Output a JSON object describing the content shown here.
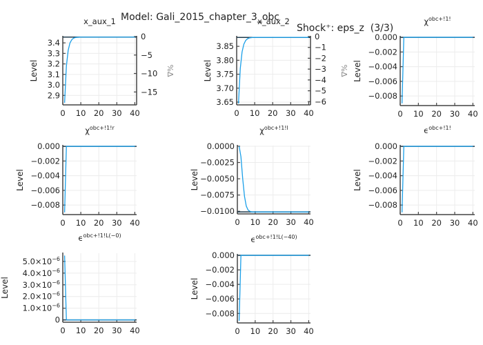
{
  "header": {
    "model_label": "Model: Gali_2015_chapter_3_obc",
    "shock_label": "Shock⁺: eps_z  (3/3)"
  },
  "colors": {
    "series": "#1a9fe8",
    "steady_state": "#1f3b4d",
    "axis": "#444444",
    "grid": "#ececec"
  },
  "chart_data": [
    {
      "type": "line",
      "title": "x_aux_1",
      "xlabel": "",
      "ylabel": "Level",
      "y2label": "%Δ",
      "xlim": [
        0,
        41
      ],
      "ylim": [
        2.81,
        3.46
      ],
      "xticks": [
        0,
        10,
        20,
        30,
        40
      ],
      "yticks": [
        2.9,
        3.0,
        3.1,
        3.2,
        3.3,
        3.4
      ],
      "ytick_labels": [
        "2.9",
        "3.0",
        "3.1",
        "3.2",
        "3.3",
        "3.4"
      ],
      "y2lim": [
        -18.5,
        0
      ],
      "y2ticks": [
        0,
        -5,
        -10,
        -15
      ],
      "y2tick_labels": [
        "0",
        "−5",
        "−10",
        "−15"
      ],
      "steady_state": 3.455,
      "x": [
        1,
        2,
        3,
        4,
        5,
        6,
        7,
        8,
        9,
        10,
        12,
        15,
        20,
        25,
        30,
        35,
        40
      ],
      "values": [
        2.83,
        3.18,
        3.33,
        3.4,
        3.43,
        3.445,
        3.451,
        3.453,
        3.454,
        3.455,
        3.455,
        3.455,
        3.455,
        3.455,
        3.455,
        3.455,
        3.455
      ]
    },
    {
      "type": "line",
      "title": "x_aux_2",
      "xlabel": "",
      "ylabel": "Level",
      "y2label": "%Δ",
      "xlim": [
        0,
        41
      ],
      "ylim": [
        3.64,
        3.885
      ],
      "xticks": [
        0,
        10,
        20,
        30,
        40
      ],
      "yticks": [
        3.65,
        3.7,
        3.75,
        3.8,
        3.85
      ],
      "ytick_labels": [
        "3.65",
        "3.70",
        "3.75",
        "3.80",
        "3.85"
      ],
      "y2lim": [
        -6.3,
        0
      ],
      "y2ticks": [
        0,
        -1,
        -2,
        -3,
        -4,
        -5,
        -6
      ],
      "y2tick_labels": [
        "0",
        "−1",
        "−2",
        "−3",
        "−4",
        "−5",
        "−6"
      ],
      "steady_state": 3.882,
      "x": [
        1,
        2,
        3,
        4,
        5,
        6,
        7,
        8,
        9,
        10,
        12,
        15,
        20,
        25,
        30,
        35,
        40
      ],
      "values": [
        3.645,
        3.77,
        3.83,
        3.858,
        3.871,
        3.877,
        3.88,
        3.881,
        3.882,
        3.882,
        3.882,
        3.882,
        3.882,
        3.882,
        3.882,
        3.882,
        3.882
      ]
    },
    {
      "type": "line",
      "title": "χᵒᵇᶜ⁺¹",
      "title_text": "χ",
      "title_sup": "obc+!1!",
      "ylabel": "Level",
      "xlim": [
        0,
        41
      ],
      "ylim": [
        -0.0093,
        0.0001
      ],
      "xticks": [
        0,
        10,
        20,
        30,
        40
      ],
      "yticks": [
        0,
        -0.002,
        -0.004,
        -0.006,
        -0.008
      ],
      "ytick_labels": [
        "0.000",
        "−0.002",
        "−0.004",
        "−0.006",
        "−0.008"
      ],
      "steady_state": 0,
      "x": [
        1,
        2,
        3,
        10,
        20,
        30,
        40
      ],
      "values": [
        -0.009,
        0,
        0,
        0,
        0,
        0,
        0
      ]
    },
    {
      "type": "line",
      "title_text": "χ",
      "title_sup": "obc+!1!r",
      "ylabel": "Level",
      "xlim": [
        0,
        41
      ],
      "ylim": [
        -0.0093,
        0.0001
      ],
      "xticks": [
        0,
        10,
        20,
        30,
        40
      ],
      "yticks": [
        0,
        -0.002,
        -0.004,
        -0.006,
        -0.008
      ],
      "ytick_labels": [
        "0.000",
        "−0.002",
        "−0.004",
        "−0.006",
        "−0.008"
      ],
      "steady_state": 0,
      "x": [
        1,
        2,
        3,
        10,
        20,
        30,
        40
      ],
      "values": [
        -0.009,
        0,
        0,
        0,
        0,
        0,
        0
      ]
    },
    {
      "type": "line",
      "title_text": "χ",
      "title_sup": "obc+!1!l",
      "ylabel": "Level",
      "xlim": [
        0,
        41
      ],
      "ylim": [
        -0.0104,
        0.0001
      ],
      "xticks": [
        0,
        10,
        20,
        30,
        40
      ],
      "yticks": [
        0,
        -0.0025,
        -0.005,
        -0.0075,
        -0.01
      ],
      "ytick_labels": [
        "0.0000",
        "−0.0025",
        "−0.0050",
        "−0.0075",
        "−0.0100"
      ],
      "steady_state": -0.0101,
      "x": [
        1,
        2,
        3,
        4,
        5,
        6,
        7,
        8,
        9,
        10,
        12,
        15,
        20,
        25,
        30,
        35,
        40
      ],
      "values": [
        0,
        -0.0016,
        -0.005,
        -0.0077,
        -0.0092,
        -0.0098,
        -0.01,
        -0.0101,
        -0.0101,
        -0.0101,
        -0.0101,
        -0.0101,
        -0.0101,
        -0.0101,
        -0.0101,
        -0.0101,
        -0.0101
      ]
    },
    {
      "type": "line",
      "title_text": "ϵ",
      "title_sup": "obc+!1!",
      "ylabel": "Level",
      "xlim": [
        0,
        41
      ],
      "ylim": [
        -0.0093,
        0.0001
      ],
      "xticks": [
        0,
        10,
        20,
        30,
        40
      ],
      "yticks": [
        0,
        -0.002,
        -0.004,
        -0.006,
        -0.008
      ],
      "ytick_labels": [
        "0.000",
        "−0.002",
        "−0.004",
        "−0.006",
        "−0.008"
      ],
      "steady_state": 0,
      "x": [
        1,
        2,
        3,
        10,
        20,
        30,
        40
      ],
      "values": [
        -0.009,
        0,
        0,
        0,
        0,
        0,
        0
      ]
    },
    {
      "type": "line",
      "title_text": "ϵ",
      "title_sup": "obc+!1!L(−0)",
      "ylabel": "Level",
      "xlim": [
        0,
        41
      ],
      "ylim": [
        -2e-07,
        5.7e-06
      ],
      "xticks": [
        0,
        10,
        20,
        30,
        40
      ],
      "yticks": [
        0,
        1e-06,
        2e-06,
        3e-06,
        4e-06,
        5e-06
      ],
      "ytick_labels": [
        "0",
        "1.0×10⁻⁶",
        "2.0×10⁻⁶",
        "3.0×10⁻⁶",
        "4.0×10⁻⁶",
        "5.0×10⁻⁶"
      ],
      "steady_state": 0,
      "x": [
        1,
        2,
        3,
        10,
        20,
        30,
        40
      ],
      "values": [
        5.5e-06,
        0,
        0,
        0,
        0,
        0,
        0
      ]
    },
    {
      "type": "line",
      "title_text": "ϵ",
      "title_sup": "obc+!1!L(−40)",
      "ylabel": "Level",
      "xlim": [
        0,
        41
      ],
      "ylim": [
        -0.0093,
        0.0001
      ],
      "xticks": [
        0,
        10,
        20,
        30,
        40
      ],
      "yticks": [
        0,
        -0.002,
        -0.004,
        -0.006,
        -0.008
      ],
      "ytick_labels": [
        "0.000",
        "−0.002",
        "−0.004",
        "−0.006",
        "−0.008"
      ],
      "steady_state": 0,
      "x": [
        1,
        2,
        3,
        10,
        20,
        30,
        40
      ],
      "values": [
        -0.009,
        0,
        0,
        0,
        0,
        0,
        0
      ]
    }
  ]
}
